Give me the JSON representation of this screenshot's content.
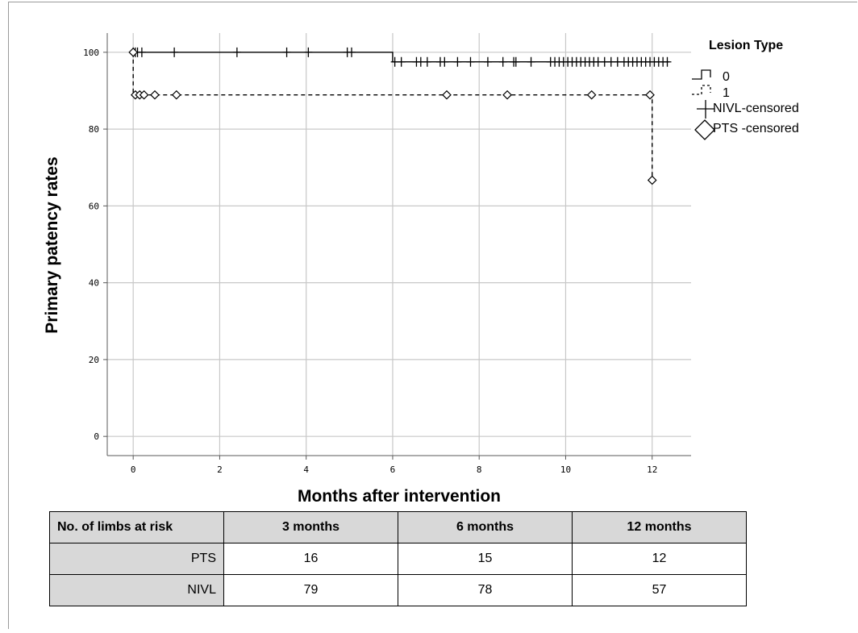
{
  "chart_data": {
    "type": "line",
    "subtype": "kaplan-meier",
    "xlabel": "Months after intervention",
    "ylabel": "Primary patency rates",
    "xlim": [
      -0.6,
      12.9
    ],
    "ylim": [
      -5,
      105
    ],
    "xticks": [
      0,
      2,
      4,
      6,
      8,
      10,
      12
    ],
    "yticks": [
      0,
      20,
      40,
      60,
      80,
      100
    ],
    "grid": true,
    "legend": {
      "title": "Lesion Type",
      "placement": "top-right",
      "entries": [
        "0",
        "1",
        "NIVL-censored",
        "PTS -censored"
      ]
    },
    "series": [
      {
        "name": "0",
        "line_style": "solid",
        "marker": "plus",
        "steps": [
          [
            0,
            100
          ],
          [
            6,
            100
          ],
          [
            6,
            97.5
          ],
          [
            12.4,
            97.5
          ]
        ],
        "censored": [
          [
            0,
            100
          ],
          [
            0.05,
            100
          ],
          [
            0.1,
            100
          ],
          [
            0.2,
            100
          ],
          [
            0.95,
            100
          ],
          [
            2.4,
            100
          ],
          [
            3.55,
            100
          ],
          [
            4.05,
            100
          ],
          [
            4.95,
            100
          ],
          [
            5.05,
            100
          ],
          [
            6.05,
            97.5
          ],
          [
            6.2,
            97.5
          ],
          [
            6.55,
            97.5
          ],
          [
            6.65,
            97.5
          ],
          [
            6.8,
            97.5
          ],
          [
            7.1,
            97.5
          ],
          [
            7.2,
            97.5
          ],
          [
            7.5,
            97.5
          ],
          [
            7.8,
            97.5
          ],
          [
            8.2,
            97.5
          ],
          [
            8.55,
            97.5
          ],
          [
            8.8,
            97.5
          ],
          [
            8.85,
            97.5
          ],
          [
            9.2,
            97.5
          ],
          [
            9.65,
            97.5
          ],
          [
            9.75,
            97.5
          ],
          [
            9.85,
            97.5
          ],
          [
            9.95,
            97.5
          ],
          [
            10.05,
            97.5
          ],
          [
            10.15,
            97.5
          ],
          [
            10.25,
            97.5
          ],
          [
            10.35,
            97.5
          ],
          [
            10.45,
            97.5
          ],
          [
            10.55,
            97.5
          ],
          [
            10.65,
            97.5
          ],
          [
            10.75,
            97.5
          ],
          [
            10.9,
            97.5
          ],
          [
            11.05,
            97.5
          ],
          [
            11.2,
            97.5
          ],
          [
            11.35,
            97.5
          ],
          [
            11.45,
            97.5
          ],
          [
            11.55,
            97.5
          ],
          [
            11.65,
            97.5
          ],
          [
            11.75,
            97.5
          ],
          [
            11.85,
            97.5
          ],
          [
            11.95,
            97.5
          ],
          [
            12.05,
            97.5
          ],
          [
            12.15,
            97.5
          ],
          [
            12.25,
            97.5
          ],
          [
            12.35,
            97.5
          ]
        ]
      },
      {
        "name": "1",
        "line_style": "dashed",
        "marker": "diamond",
        "steps": [
          [
            0,
            100
          ],
          [
            0,
            88.9
          ],
          [
            12,
            88.9
          ],
          [
            12,
            66.7
          ]
        ],
        "censored": [
          [
            0,
            100
          ],
          [
            0.05,
            88.9
          ],
          [
            0.15,
            88.9
          ],
          [
            0.25,
            88.9
          ],
          [
            0.5,
            88.9
          ],
          [
            1.0,
            88.9
          ],
          [
            7.25,
            88.9
          ],
          [
            8.65,
            88.9
          ],
          [
            10.6,
            88.9
          ],
          [
            11.95,
            88.9
          ],
          [
            12,
            66.7
          ]
        ]
      }
    ]
  },
  "risk_table": {
    "corner": "No. of limbs at risk",
    "columns": [
      "3 months",
      "6 months",
      "12 months"
    ],
    "rows": [
      {
        "label": "PTS",
        "values": [
          "16",
          "15",
          "12"
        ]
      },
      {
        "label": "NIVL",
        "values": [
          "79",
          "78",
          "57"
        ]
      }
    ]
  },
  "colors": {
    "line": "#000000",
    "grid": "#c8c8c8",
    "axis": "#5a5a5a",
    "table_header": "#d8d8d8"
  }
}
